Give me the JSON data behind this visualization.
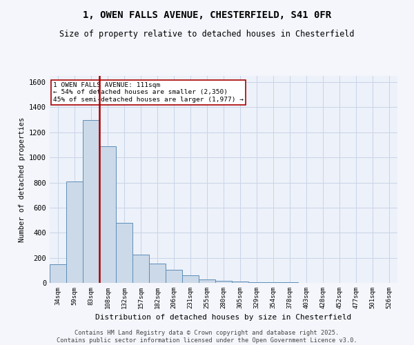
{
  "title_line1": "1, OWEN FALLS AVENUE, CHESTERFIELD, S41 0FR",
  "title_line2": "Size of property relative to detached houses in Chesterfield",
  "xlabel": "Distribution of detached houses by size in Chesterfield",
  "ylabel": "Number of detached properties",
  "bar_labels": [
    "34sqm",
    "59sqm",
    "83sqm",
    "108sqm",
    "132sqm",
    "157sqm",
    "182sqm",
    "206sqm",
    "231sqm",
    "255sqm",
    "280sqm",
    "305sqm",
    "329sqm",
    "354sqm",
    "378sqm",
    "403sqm",
    "428sqm",
    "452sqm",
    "477sqm",
    "501sqm",
    "526sqm"
  ],
  "bar_values": [
    150,
    810,
    1300,
    1090,
    480,
    225,
    155,
    105,
    60,
    30,
    18,
    10,
    7,
    4,
    3,
    2,
    1,
    1,
    1,
    0,
    0
  ],
  "bar_color": "#ccd9e8",
  "bar_edge_color": "#5b8db8",
  "property_line_color": "#aa0000",
  "property_line_bin": 2.5,
  "annotation_text": "1 OWEN FALLS AVENUE: 111sqm\n← 54% of detached houses are smaller (2,350)\n45% of semi-detached houses are larger (1,977) →",
  "annotation_box_color": "#aa0000",
  "ylim": [
    0,
    1650
  ],
  "yticks": [
    0,
    200,
    400,
    600,
    800,
    1000,
    1200,
    1400,
    1600
  ],
  "grid_color": "#c8d4e8",
  "background_color": "#edf1f9",
  "fig_background": "#f4f6fb",
  "footer_line1": "Contains HM Land Registry data © Crown copyright and database right 2025.",
  "footer_line2": "Contains public sector information licensed under the Open Government Licence v3.0."
}
